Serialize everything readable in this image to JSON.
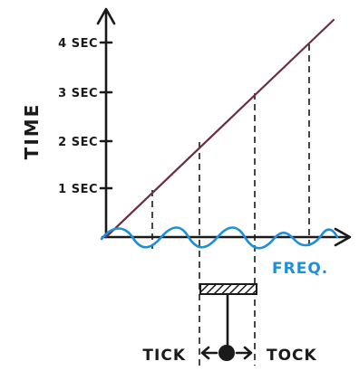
{
  "axis": {
    "y_title": "TIME",
    "x_title": "FREQ.",
    "y_ticks": [
      "1 SEC",
      "2 SEC",
      "3 SEC",
      "4 SEC"
    ]
  },
  "pendulum": {
    "left_label": "TICK",
    "right_label": "TOCK"
  },
  "colors": {
    "ink": "#1a1a1a",
    "ramp": "#6b2f45",
    "wave": "#1f8fd8"
  }
}
